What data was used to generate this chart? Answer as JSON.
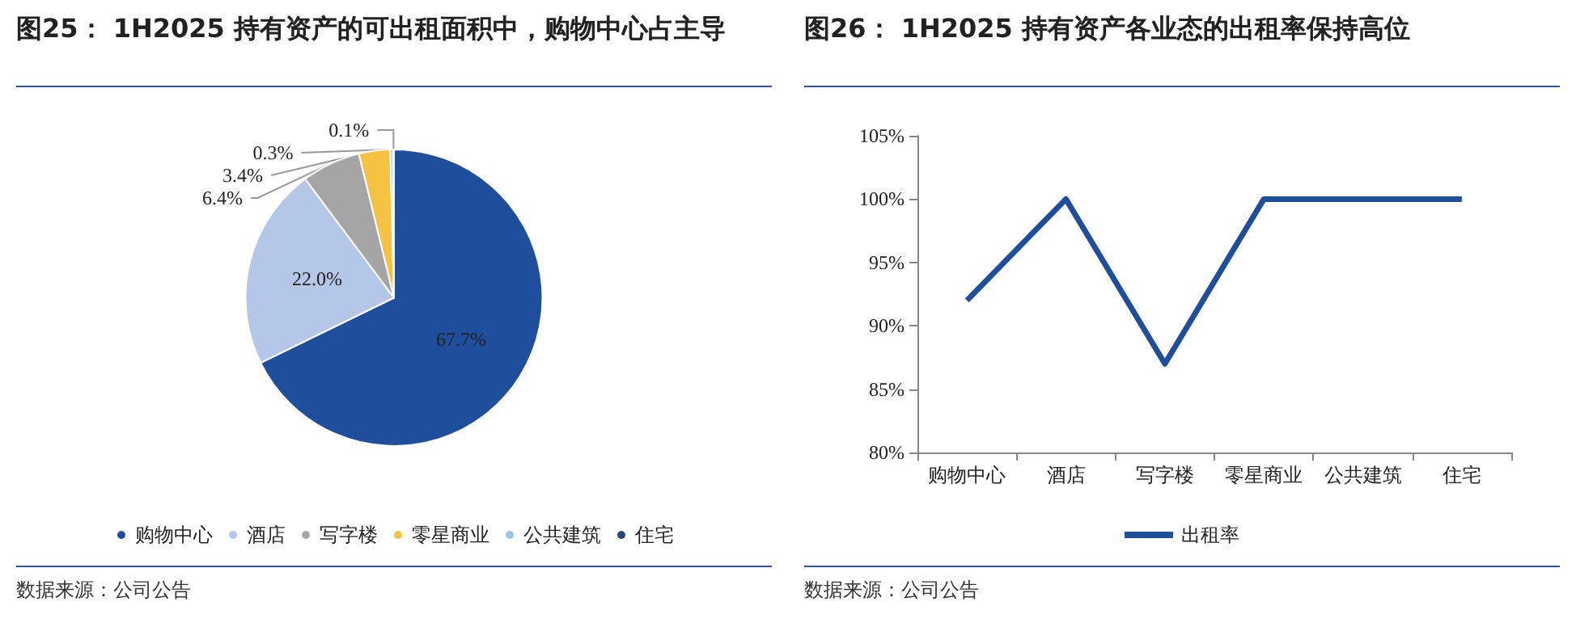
{
  "chart_data": [
    {
      "type": "pie",
      "title": "图25：  1H2025 持有资产的可出租面积中，购物中心占主导",
      "categories": [
        "购物中心",
        "酒店",
        "写字楼",
        "零星商业",
        "公共建筑",
        "住宅"
      ],
      "values": [
        67.7,
        22.0,
        6.4,
        3.4,
        0.3,
        0.1
      ],
      "colors": [
        "#1f4e9c",
        "#b4c7e7",
        "#a5a5a5",
        "#f5c242",
        "#9dc3e6",
        "#264478"
      ],
      "value_labels": [
        "67.7%",
        "22.0%",
        "6.4%",
        "3.4%",
        "0.3%",
        "0.1%"
      ],
      "legend": "bottom",
      "annotations": [
        "数据来源：公司公告"
      ]
    },
    {
      "type": "line",
      "title": "图26：  1H2025 持有资产各业态的出租率保持高位",
      "categories": [
        "购物中心",
        "酒店",
        "写字楼",
        "零星商业",
        "公共建筑",
        "住宅"
      ],
      "series": [
        {
          "name": "出租率",
          "color": "#1f4e9c",
          "values": [
            92,
            100,
            87,
            100,
            100,
            100
          ]
        }
      ],
      "ylim": [
        80,
        105
      ],
      "yticks": [
        {
          "value": 80,
          "label": "80%"
        },
        {
          "value": 85,
          "label": "85%"
        },
        {
          "value": 90,
          "label": "90%"
        },
        {
          "value": 95,
          "label": "95%"
        },
        {
          "value": 100,
          "label": "100%"
        },
        {
          "value": 105,
          "label": "105%"
        }
      ],
      "marker": "none",
      "grid": false,
      "legend": "bottom",
      "annotations": [
        "数据来源：公司公告"
      ]
    }
  ]
}
